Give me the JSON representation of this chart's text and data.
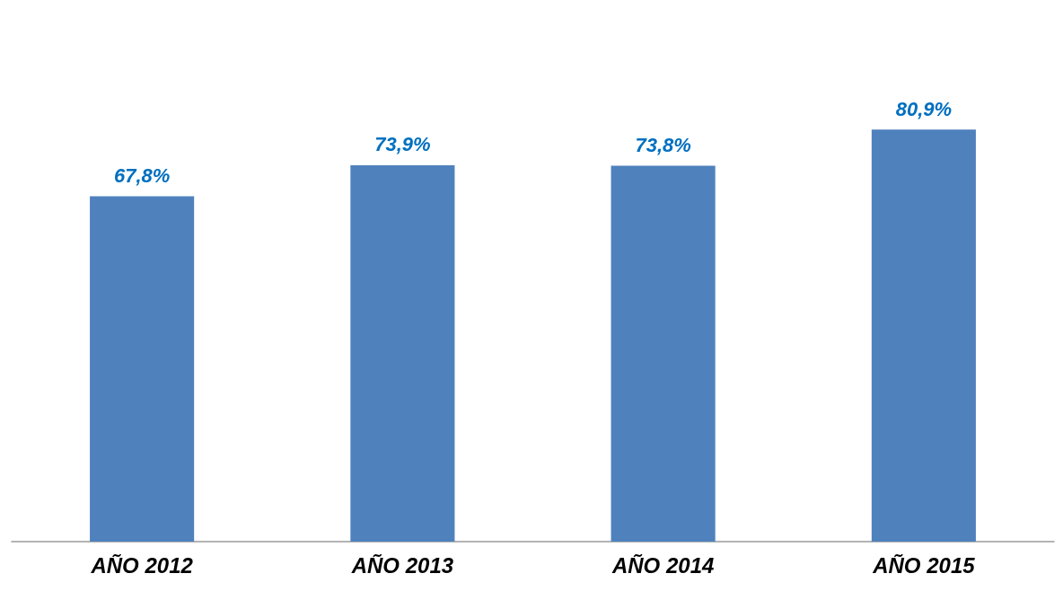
{
  "chart_data": {
    "type": "bar",
    "categories": [
      "AÑO 2012",
      "AÑO 2013",
      "AÑO 2014",
      "AÑO 2015"
    ],
    "values": [
      67.8,
      73.9,
      73.8,
      80.9
    ],
    "value_labels": [
      "67,8%",
      "73,9%",
      "73,8%",
      "80,9%"
    ],
    "color": "#4f81bd"
  }
}
